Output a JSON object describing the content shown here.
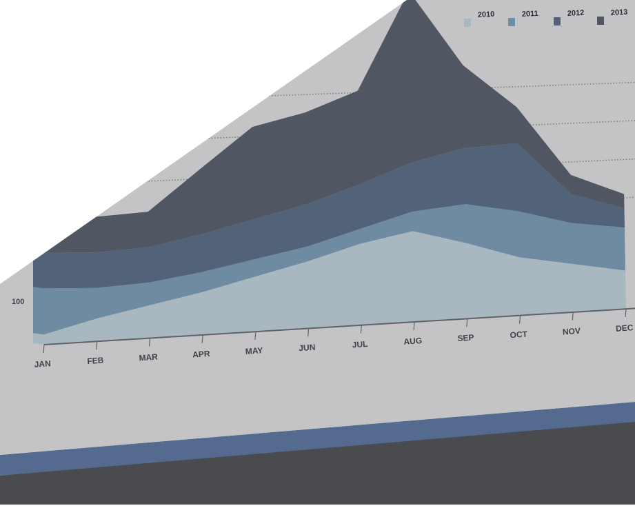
{
  "chart_data": {
    "type": "area",
    "stacked": true,
    "categories": [
      "JAN",
      "FEB",
      "MAR",
      "APR",
      "MAY",
      "JUN",
      "JUL",
      "AUG",
      "SEP",
      "OCT",
      "NOV",
      "DEC"
    ],
    "series": [
      {
        "name": "2010",
        "color": "#a9b7c0",
        "values": [
          20,
          45,
          65,
          85,
          110,
          135,
          165,
          185,
          155,
          120,
          100,
          80
        ]
      },
      {
        "name": "2011",
        "color": "#6f8ba1",
        "values": [
          90,
          60,
          45,
          40,
          35,
          30,
          30,
          40,
          80,
          95,
          85,
          90
        ]
      },
      {
        "name": "2012",
        "color": "#526279",
        "values": [
          70,
          70,
          70,
          75,
          80,
          85,
          90,
          100,
          115,
          140,
          60,
          40
        ]
      },
      {
        "name": "2013",
        "color": "#505662",
        "values": [
          70,
          70,
          70,
          130,
          185,
          185,
          190,
          350,
          170,
          75,
          40,
          30
        ]
      }
    ],
    "yticks": [
      100
    ],
    "legend_position": "top-right",
    "grid": true
  },
  "colors": {
    "panel": "#c4c4c6",
    "floor": "#4a4b4f",
    "stripe": "#556a8f",
    "axis": "#606265",
    "text": "#3f4144",
    "legend_text": "#2e3034"
  }
}
